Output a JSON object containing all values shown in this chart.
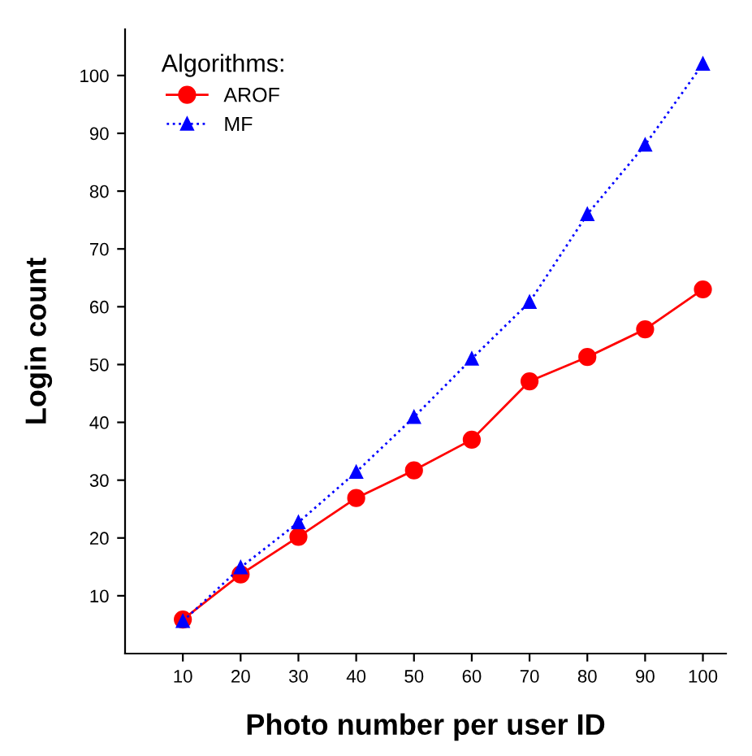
{
  "chart_data": {
    "type": "line",
    "xlabel": "Photo number per user ID",
    "ylabel": "Login count",
    "legend_title": "Algorithms:",
    "x": [
      10,
      20,
      30,
      40,
      50,
      60,
      70,
      80,
      90,
      100
    ],
    "series": [
      {
        "name": "AROF",
        "color": "#ff0000",
        "marker": "circle",
        "line_style": "solid",
        "values": [
          5.9,
          13.7,
          20.2,
          26.9,
          31.7,
          37,
          47.1,
          51.3,
          56.1,
          63
        ]
      },
      {
        "name": "MF",
        "color": "#0000ff",
        "marker": "triangle",
        "line_style": "dotted",
        "values": [
          5.6,
          14.9,
          22.7,
          31.4,
          40.9,
          51,
          60.8,
          76,
          88,
          102
        ]
      }
    ],
    "xlim": [
      0,
      104
    ],
    "ylim": [
      0,
      108
    ],
    "xticks": [
      10,
      20,
      30,
      40,
      50,
      60,
      70,
      80,
      90,
      100
    ],
    "yticks": [
      10,
      20,
      30,
      40,
      50,
      60,
      70,
      80,
      90,
      100
    ],
    "grid": false,
    "legend": "top left"
  }
}
